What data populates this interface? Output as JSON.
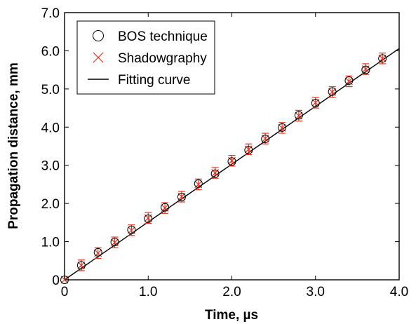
{
  "chart_data": {
    "type": "scatter",
    "title": "",
    "xlabel": "Time, µs",
    "ylabel": "Propagation distance, mm",
    "xlim": [
      0,
      4.0
    ],
    "ylim": [
      0,
      7.0
    ],
    "x_ticks": [
      "0",
      "1.0",
      "2.0",
      "3.0",
      "4.0"
    ],
    "y_ticks": [
      "0",
      "1.0",
      "2.0",
      "3.0",
      "4.0",
      "5.0",
      "6.0",
      "7.0"
    ],
    "grid": false,
    "legend_position": "top-left",
    "x": [
      0,
      0.2,
      0.4,
      0.6,
      0.8,
      1.0,
      1.2,
      1.4,
      1.6,
      1.8,
      2.0,
      2.2,
      2.4,
      2.6,
      2.8,
      3.0,
      3.2,
      3.4,
      3.6,
      3.8
    ],
    "series": [
      {
        "name": "BOS technique",
        "marker": "circle",
        "color": "#000000",
        "values": [
          0,
          0.38,
          0.72,
          0.99,
          1.31,
          1.6,
          1.9,
          2.17,
          2.52,
          2.78,
          3.1,
          3.4,
          3.69,
          3.99,
          4.31,
          4.63,
          4.93,
          5.22,
          5.5,
          5.8
        ],
        "error": 0.14
      },
      {
        "name": "Shadowgraphy",
        "marker": "x",
        "color": "#e8331c",
        "values": [
          0,
          0.38,
          0.7,
          0.98,
          1.3,
          1.62,
          1.88,
          2.18,
          2.5,
          2.8,
          3.12,
          3.42,
          3.7,
          3.98,
          4.3,
          4.64,
          4.92,
          5.2,
          5.52,
          5.8
        ],
        "error": 0.14
      },
      {
        "name": "Fitting curve",
        "type": "line",
        "color": "#000000",
        "x": [
          0,
          4.0
        ],
        "values": [
          0,
          6.06
        ]
      }
    ]
  }
}
